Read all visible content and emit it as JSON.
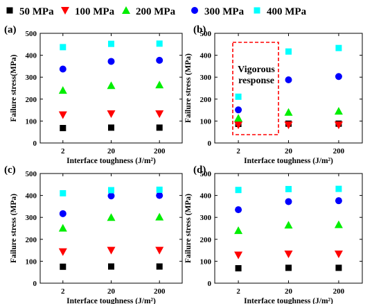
{
  "legend": {
    "placement": "top",
    "items": [
      {
        "label": "50 MPa",
        "marker": "square",
        "color": "#000000"
      },
      {
        "label": "100 MPa",
        "marker": "triangle-down",
        "color": "#ff0000"
      },
      {
        "label": "200 MPa",
        "marker": "triangle-up",
        "color": "#00ee00"
      },
      {
        "label": "300 MPa",
        "marker": "circle",
        "color": "#0000ff"
      },
      {
        "label": "400 MPa",
        "marker": "square",
        "color": "#00ffff"
      }
    ]
  },
  "annotation": {
    "line1": "Vigorous",
    "line2": "response",
    "box_color": "#ff0000"
  },
  "chart_data": [
    {
      "type": "scatter",
      "panel_label": "(a)",
      "xlabel": "Interface toughness (J/m²)",
      "ylabel": "Failure stress(MPa)",
      "categories": [
        "2",
        "20",
        "200"
      ],
      "ylim": [
        0,
        500
      ],
      "yticks": [
        0,
        100,
        200,
        300,
        400,
        500
      ],
      "grid": false,
      "series": [
        {
          "name": "50 MPa",
          "values": [
            68,
            70,
            70
          ]
        },
        {
          "name": "100 MPa",
          "values": [
            128,
            133,
            133
          ]
        },
        {
          "name": "200 MPa",
          "values": [
            240,
            262,
            265
          ]
        },
        {
          "name": "300 MPa",
          "values": [
            337,
            372,
            377
          ]
        },
        {
          "name": "400 MPa",
          "values": [
            437,
            452,
            453
          ]
        }
      ]
    },
    {
      "type": "scatter",
      "panel_label": "(b)",
      "xlabel": "Interface toughness (J/m²)",
      "ylabel": "Failure stress (MPa)",
      "categories": [
        "2",
        "20",
        "200"
      ],
      "ylim": [
        0,
        500
      ],
      "yticks": [
        0,
        100,
        200,
        300,
        400,
        500
      ],
      "grid": false,
      "series": [
        {
          "name": "50 MPa",
          "values": [
            87,
            88,
            88
          ]
        },
        {
          "name": "100 MPa",
          "values": [
            82,
            82,
            82
          ]
        },
        {
          "name": "200 MPa",
          "values": [
            113,
            140,
            145
          ]
        },
        {
          "name": "300 MPa",
          "values": [
            151,
            288,
            303
          ]
        },
        {
          "name": "400 MPa",
          "values": [
            211,
            417,
            433
          ]
        }
      ]
    },
    {
      "type": "scatter",
      "panel_label": "(c)",
      "xlabel": "Interface toughness (J/m²)",
      "ylabel": "Failure stress (MPa)",
      "categories": [
        "2",
        "20",
        "200"
      ],
      "ylim": [
        0,
        500
      ],
      "yticks": [
        0,
        100,
        200,
        300,
        400,
        500
      ],
      "grid": false,
      "series": [
        {
          "name": "50 MPa",
          "values": [
            75,
            76,
            76
          ]
        },
        {
          "name": "100 MPa",
          "values": [
            143,
            150,
            150
          ]
        },
        {
          "name": "200 MPa",
          "values": [
            251,
            300,
            302
          ]
        },
        {
          "name": "300 MPa",
          "values": [
            317,
            398,
            400
          ]
        },
        {
          "name": "400 MPa",
          "values": [
            410,
            424,
            426
          ]
        }
      ]
    },
    {
      "type": "scatter",
      "panel_label": "(d)",
      "xlabel": "Interface toughness (J/m²)",
      "ylabel": "Failure stress (MPa)",
      "categories": [
        "2",
        "20",
        "200"
      ],
      "ylim": [
        0,
        500
      ],
      "yticks": [
        0,
        100,
        200,
        300,
        400,
        500
      ],
      "grid": false,
      "series": [
        {
          "name": "50 MPa",
          "values": [
            68,
            70,
            70
          ]
        },
        {
          "name": "100 MPa",
          "values": [
            128,
            133,
            133
          ]
        },
        {
          "name": "200 MPa",
          "values": [
            240,
            265,
            267
          ]
        },
        {
          "name": "300 MPa",
          "values": [
            335,
            372,
            376
          ]
        },
        {
          "name": "400 MPa",
          "values": [
            425,
            429,
            430
          ]
        }
      ]
    }
  ]
}
